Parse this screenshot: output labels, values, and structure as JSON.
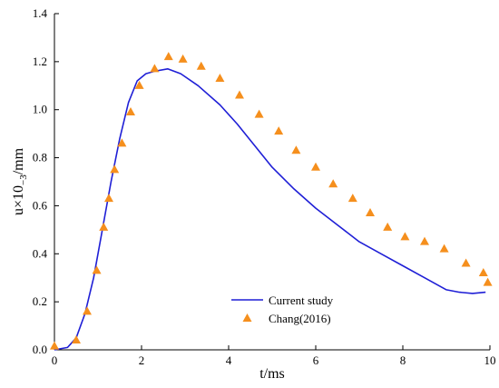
{
  "chart_data": {
    "type": "line",
    "title": "",
    "xlabel": "t/ms",
    "ylabel": {
      "base": "u×10",
      "sub": "−3",
      "tail": "/mm"
    },
    "xlim": [
      0,
      10
    ],
    "ylim": [
      0,
      1.4
    ],
    "grid": false,
    "legend_position": "bottom-center",
    "x_ticks": [
      "0",
      "2",
      "4",
      "6",
      "8",
      "10"
    ],
    "y_ticks": [
      "0.0",
      "0.2",
      "0.4",
      "0.6",
      "0.8",
      "1.0",
      "1.2",
      "1.4"
    ],
    "series": [
      {
        "name": "Current study",
        "style": "line",
        "color": "#1f1fd6",
        "x": [
          0,
          0.3,
          0.5,
          0.7,
          0.9,
          1.1,
          1.3,
          1.5,
          1.7,
          1.9,
          2.1,
          2.3,
          2.6,
          2.9,
          3.3,
          3.8,
          4.2,
          4.6,
          5.0,
          5.5,
          6.0,
          6.5,
          7.0,
          7.5,
          8.0,
          8.5,
          9.0,
          9.3,
          9.6,
          9.9
        ],
        "values": [
          0.0,
          0.01,
          0.05,
          0.15,
          0.3,
          0.5,
          0.7,
          0.88,
          1.03,
          1.12,
          1.15,
          1.16,
          1.17,
          1.15,
          1.1,
          1.02,
          0.94,
          0.85,
          0.76,
          0.67,
          0.59,
          0.52,
          0.45,
          0.4,
          0.35,
          0.3,
          0.25,
          0.24,
          0.235,
          0.24
        ]
      },
      {
        "name": "Chang(2016)",
        "style": "marker",
        "marker": "triangle",
        "color": "#f58f1d",
        "x": [
          0.0,
          0.5,
          0.75,
          0.97,
          1.13,
          1.25,
          1.38,
          1.55,
          1.75,
          1.95,
          2.3,
          2.62,
          2.95,
          3.37,
          3.8,
          4.25,
          4.7,
          5.15,
          5.55,
          6.0,
          6.4,
          6.85,
          7.25,
          7.65,
          8.05,
          8.5,
          8.95,
          9.45,
          9.85,
          9.95
        ],
        "values": [
          0.015,
          0.04,
          0.16,
          0.33,
          0.51,
          0.63,
          0.75,
          0.86,
          0.99,
          1.1,
          1.17,
          1.22,
          1.21,
          1.18,
          1.13,
          1.06,
          0.98,
          0.91,
          0.83,
          0.76,
          0.69,
          0.63,
          0.57,
          0.51,
          0.47,
          0.45,
          0.42,
          0.36,
          0.32,
          0.28
        ]
      }
    ]
  }
}
